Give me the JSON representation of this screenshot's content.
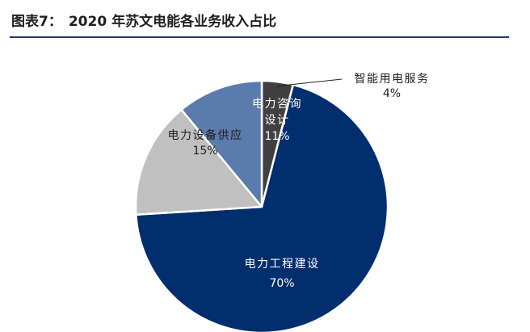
{
  "figure": {
    "label": "图表7：",
    "title": "2020 年苏文电能各业务收入占比"
  },
  "colors": {
    "rule": "#1f3d75",
    "text_dark": "#1f1f1f",
    "text_light": "#ffffff",
    "leader_line": "#222222"
  },
  "chart_data": {
    "type": "pie",
    "title": "2020 年苏文电能各业务收入占比",
    "start": "12 o'clock, clockwise",
    "slices": [
      {
        "label": "智能用电服务",
        "value": 4,
        "display": "4%",
        "color": "#404040",
        "label_color": "#1f1f1f",
        "label_position": "outside",
        "leader_line": true
      },
      {
        "label": "电力工程建设",
        "value": 70,
        "display": "70%",
        "color": "#002e6e",
        "label_color": "#ffffff",
        "label_position": "inside"
      },
      {
        "label": "电力设备供应",
        "value": 15,
        "display": "15%",
        "color": "#c0c0c0",
        "label_color": "#1f1f1f",
        "label_position": "inside"
      },
      {
        "label": "电力咨询设计",
        "value": 11,
        "display": "11%",
        "color": "#5b7bac",
        "label_color": "#ffffff",
        "label_position": "inside"
      }
    ]
  }
}
